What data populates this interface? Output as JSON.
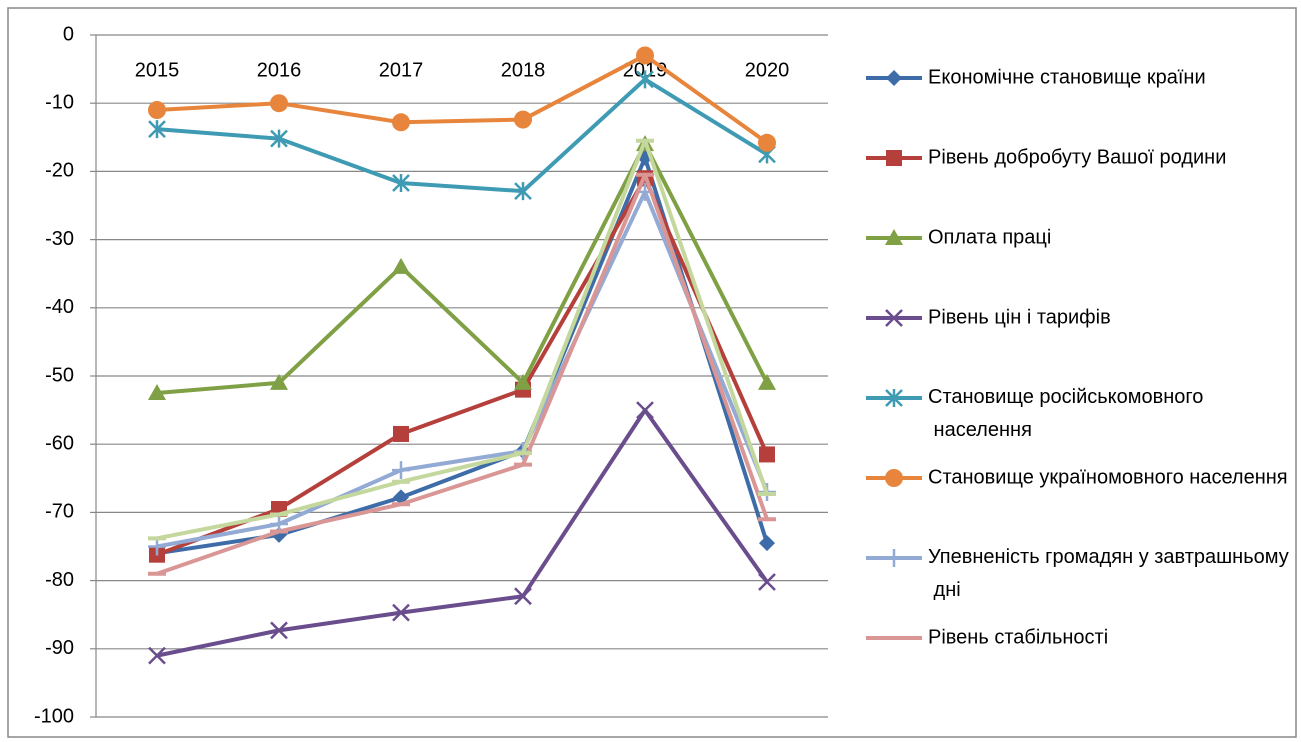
{
  "chart_data": {
    "type": "line",
    "categories": [
      "2015",
      "2016",
      "2017",
      "2018",
      "2019",
      "2020"
    ],
    "ylim": [
      -100,
      0
    ],
    "yticks": [
      0,
      -10,
      -20,
      -30,
      -40,
      -50,
      -60,
      -70,
      -80,
      -90,
      -100
    ],
    "grid": true,
    "legend": "right",
    "series": [
      {
        "name": "Економічне становище країни",
        "color": "#3d6ca8",
        "marker": "diamond",
        "values": [
          -76,
          -73.3,
          -67.8,
          -61,
          -18,
          -74.5
        ]
      },
      {
        "name": "Рівень добробуту Вашої родини",
        "color": "#b5403b",
        "marker": "square",
        "values": [
          -76.2,
          -69.5,
          -58.5,
          -52,
          -21,
          -61.5
        ]
      },
      {
        "name": "Оплата праці",
        "color": "#7fa044",
        "marker": "triangle",
        "values": [
          -52.5,
          -51,
          -34,
          -51,
          -16,
          -51
        ]
      },
      {
        "name": "Рівень цін і тарифів",
        "color": "#6a4d8d",
        "marker": "x",
        "values": [
          -91,
          -87.3,
          -84.7,
          -82.3,
          -55,
          -80.2
        ]
      },
      {
        "name": "Становище російськомовного населення",
        "color": "#3e9bb3",
        "marker": "star",
        "values": [
          -13.8,
          -15.2,
          -21.7,
          -22.9,
          -6.5,
          -17.5
        ]
      },
      {
        "name": "Становище україномовного населення",
        "color": "#e8853c",
        "marker": "circle",
        "values": [
          -11,
          -10,
          -12.8,
          -12.4,
          -3,
          -15.8
        ]
      },
      {
        "name": "Упевненість громадян у завтрашньому дні",
        "color": "#93aad5",
        "marker": "plus",
        "values": [
          -75,
          -71.7,
          -63.8,
          -61,
          -23,
          -67
        ]
      },
      {
        "name": "Рівень стабільності",
        "color": "#d99694",
        "marker": "dash",
        "values": [
          -79,
          -72.8,
          -68.8,
          -63,
          -20.5,
          -71
        ]
      },
      {
        "name": null,
        "color": "#c4d79c",
        "marker": "dash",
        "values": [
          -73.8,
          -70.3,
          -65.5,
          -61.3,
          -15.5,
          -67.3
        ]
      }
    ]
  }
}
